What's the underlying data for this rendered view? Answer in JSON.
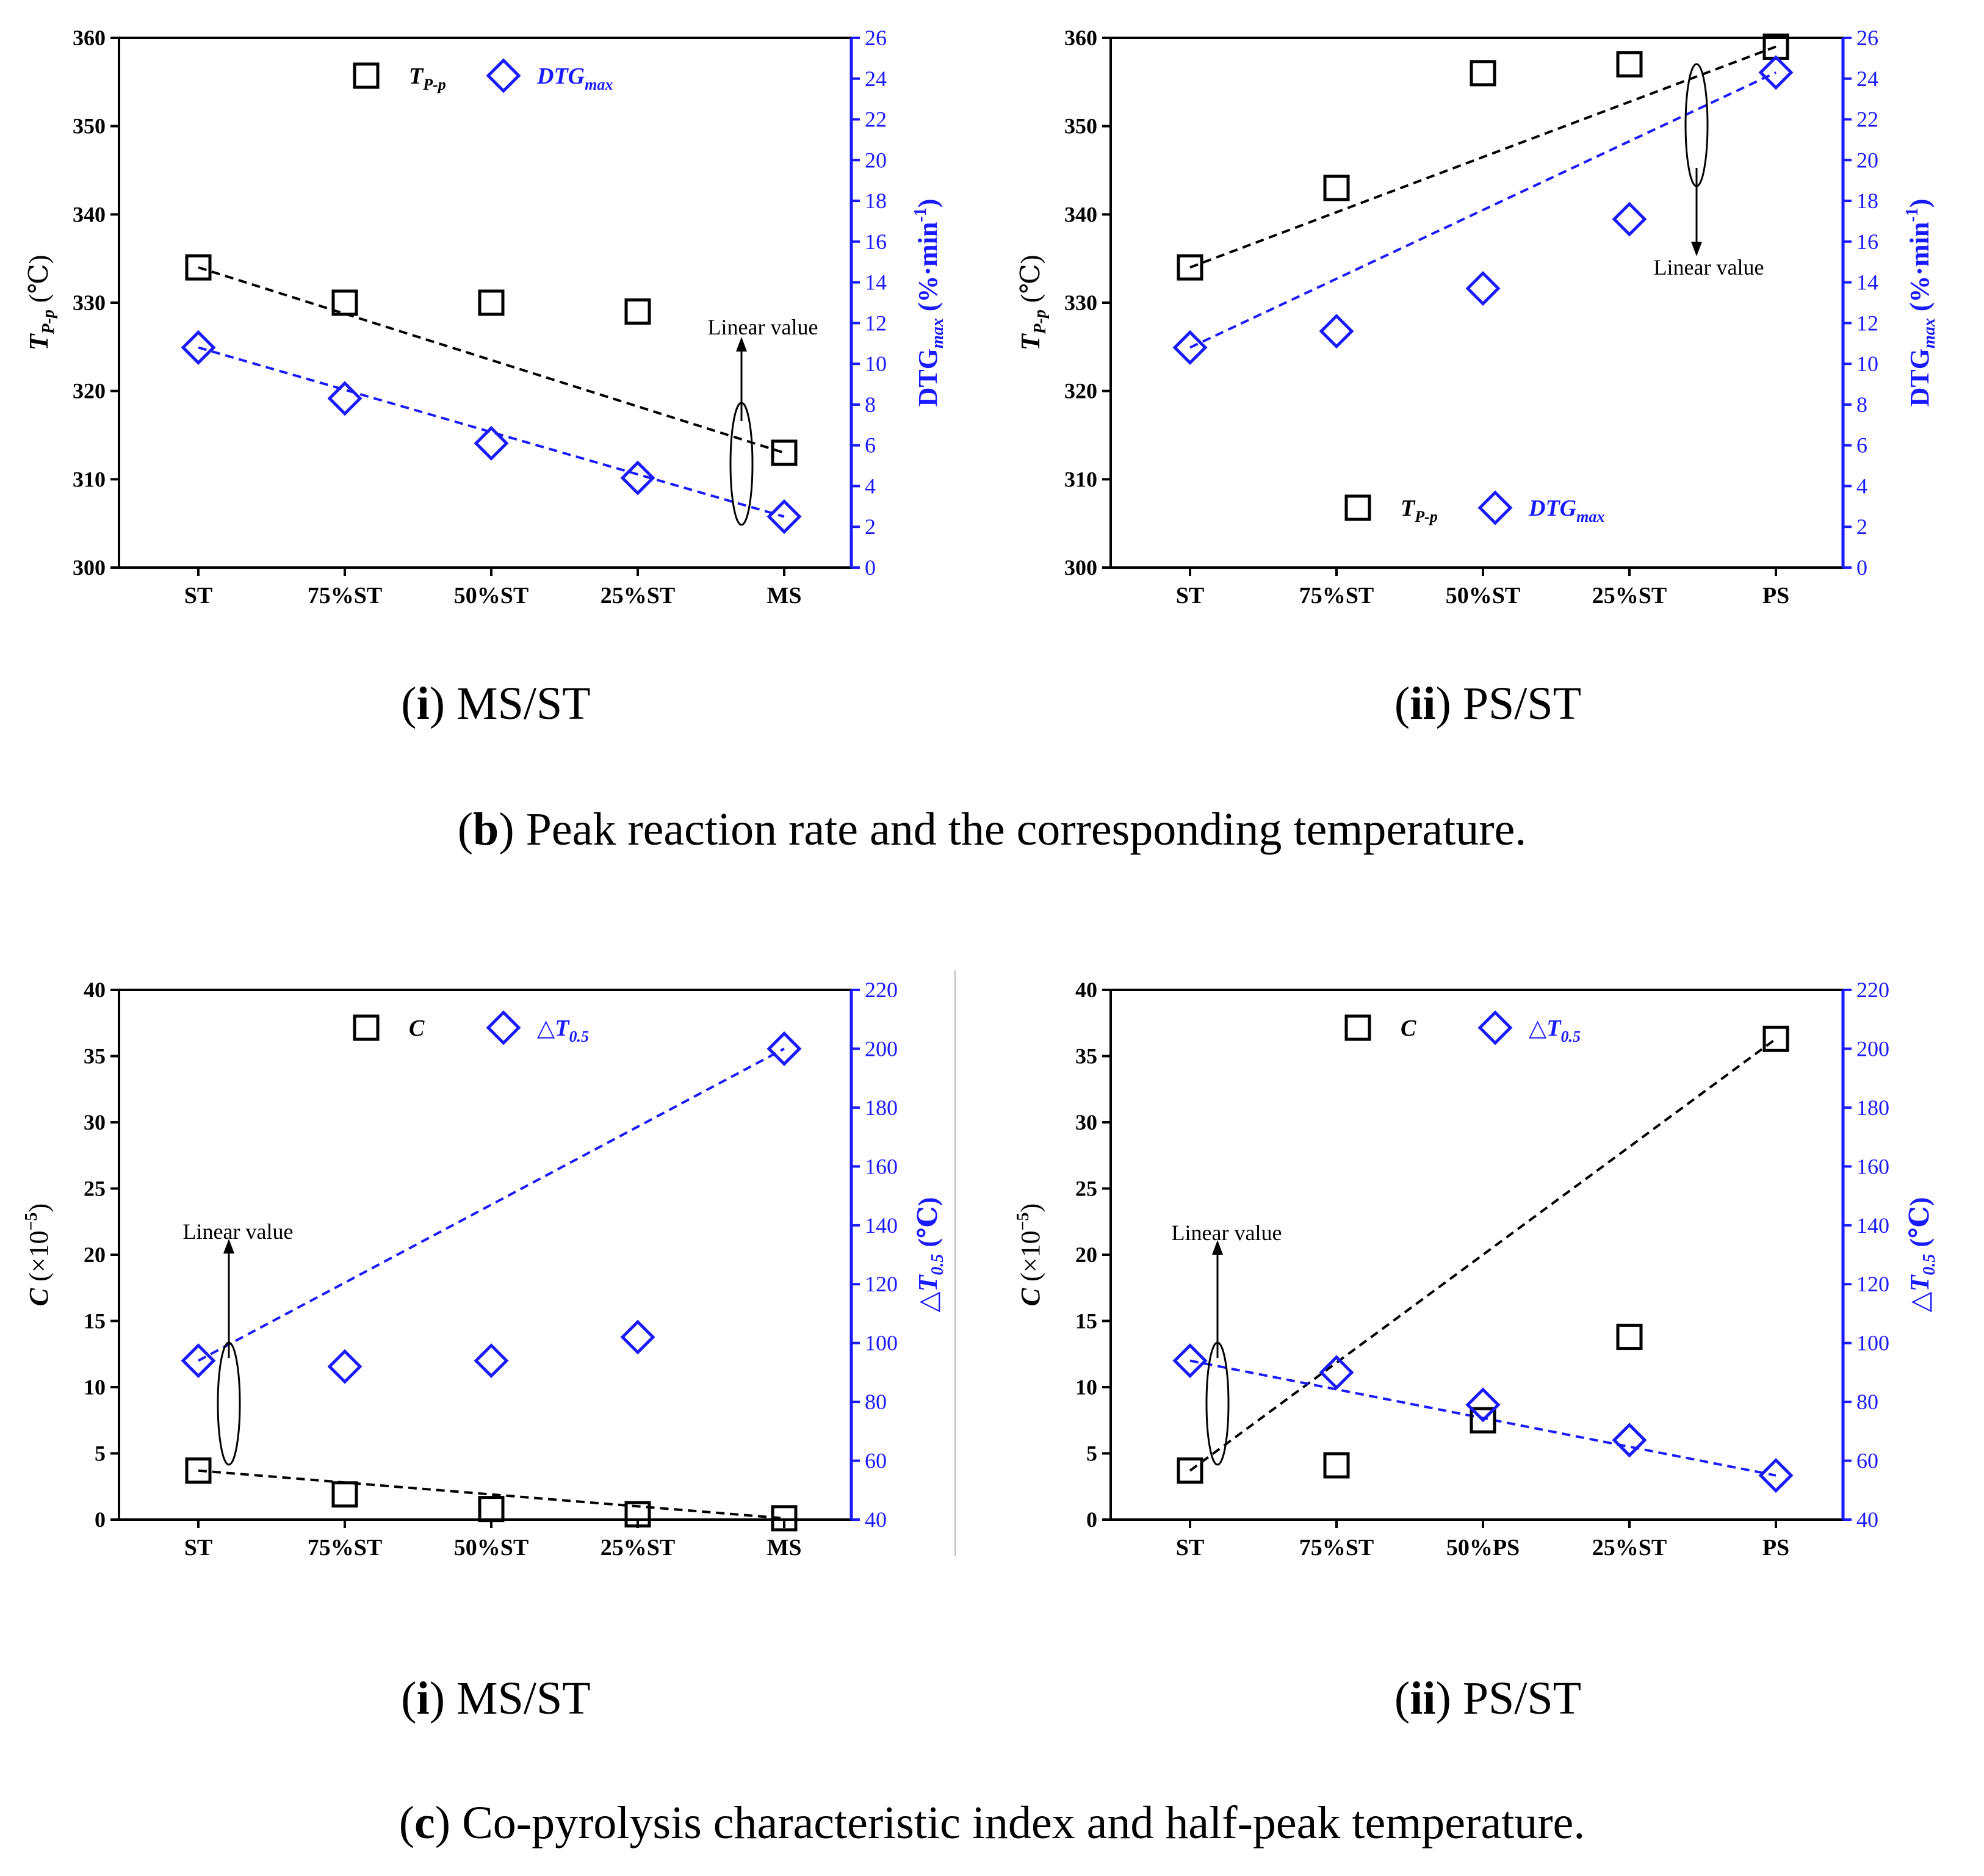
{
  "captions": {
    "b_i_letter": "i",
    "b_i_text": "MS/ST",
    "b_ii_letter": "ii",
    "b_ii_text": "PS/ST",
    "b_group_letter": "b",
    "b_group_text": "Peak reaction rate and the corresponding temperature.",
    "c_i_letter": "i",
    "c_i_text": "MS/ST",
    "c_ii_letter": "ii",
    "c_ii_text": "PS/ST",
    "c_group_letter": "c",
    "c_group_text": "Co-pyrolysis characteristic index and half-peak temperature."
  },
  "colors": {
    "left_series": "#000000",
    "right_series": "#1a1aff"
  },
  "chart_data": [
    {
      "id": "b-i",
      "type": "scatter",
      "categories": [
        "ST",
        "75%ST",
        "50%ST",
        "25%ST",
        "MS"
      ],
      "left_axis": {
        "label_main": "T",
        "label_sub": "P-p",
        "label_unit": " (℃)",
        "ylim": [
          300,
          360
        ],
        "ticks": [
          300,
          310,
          320,
          330,
          340,
          350,
          360
        ]
      },
      "right_axis": {
        "label_main": "DTG",
        "label_sub": "max",
        "label_unit": " (%·min",
        "label_sup": "-1",
        "label_close": ")",
        "ylim": [
          0,
          26
        ],
        "ticks": [
          0,
          2,
          4,
          6,
          8,
          10,
          12,
          14,
          16,
          18,
          20,
          22,
          24,
          26
        ]
      },
      "series": [
        {
          "name": "T",
          "name_sub": "P-p",
          "axis": "left",
          "marker": "square",
          "values": [
            334,
            330,
            330,
            329,
            313
          ]
        },
        {
          "name": "DTG",
          "name_sub": "max",
          "axis": "right",
          "marker": "diamond",
          "values": [
            10.8,
            8.3,
            6.1,
            4.4,
            2.5
          ]
        }
      ],
      "linear_lines": [
        {
          "axis": "left",
          "from": [
            0,
            334
          ],
          "to": [
            4,
            313
          ]
        },
        {
          "axis": "right",
          "from": [
            0,
            10.8
          ],
          "to": [
            4,
            2.5
          ]
        }
      ],
      "annotation": {
        "text": "Linear value",
        "direction": "up"
      },
      "legend_position": "top-center"
    },
    {
      "id": "b-ii",
      "type": "scatter",
      "categories": [
        "ST",
        "75%ST",
        "50%ST",
        "25%ST",
        "PS"
      ],
      "left_axis": {
        "label_main": "T",
        "label_sub": "P-p",
        "label_unit": " (℃)",
        "ylim": [
          300,
          360
        ],
        "ticks": [
          300,
          310,
          320,
          330,
          340,
          350,
          360
        ]
      },
      "right_axis": {
        "label_main": "DTG",
        "label_sub": "max",
        "label_unit": " (%·min",
        "label_sup": "-1",
        "label_close": ")",
        "ylim": [
          0,
          26
        ],
        "ticks": [
          0,
          2,
          4,
          6,
          8,
          10,
          12,
          14,
          16,
          18,
          20,
          22,
          24,
          26
        ]
      },
      "series": [
        {
          "name": "T",
          "name_sub": "P-p",
          "axis": "left",
          "marker": "square",
          "values": [
            334,
            343,
            356,
            357,
            359
          ]
        },
        {
          "name": "DTG",
          "name_sub": "max",
          "axis": "right",
          "marker": "diamond",
          "values": [
            10.8,
            11.6,
            13.7,
            17.1,
            24.3
          ]
        }
      ],
      "linear_lines": [
        {
          "axis": "left",
          "from": [
            0,
            334
          ],
          "to": [
            4,
            359
          ]
        },
        {
          "axis": "right",
          "from": [
            0,
            10.8
          ],
          "to": [
            4,
            24.3
          ]
        }
      ],
      "annotation": {
        "text": "Linear value",
        "direction": "down"
      },
      "legend_position": "bottom-center"
    },
    {
      "id": "c-i",
      "type": "scatter",
      "categories": [
        "ST",
        "75%ST",
        "50%ST",
        "25%ST",
        "MS"
      ],
      "left_axis": {
        "label_main": "C",
        "label_unit": " (×10",
        "label_sup": "−5",
        "label_close": ")",
        "ylim": [
          0,
          40
        ],
        "ticks": [
          0,
          5,
          10,
          15,
          20,
          25,
          30,
          35,
          40
        ]
      },
      "right_axis": {
        "label_main": "△T",
        "label_sub": "0.5",
        "label_unit": " (℃)",
        "ylim": [
          40,
          220
        ],
        "ticks": [
          40,
          60,
          80,
          100,
          120,
          140,
          160,
          180,
          200,
          220
        ]
      },
      "series": [
        {
          "name": "C",
          "axis": "left",
          "marker": "square",
          "values": [
            3.7,
            1.9,
            0.8,
            0.4,
            0.1
          ]
        },
        {
          "name": "△T",
          "name_sub": "0.5",
          "axis": "right",
          "marker": "diamond",
          "values": [
            94,
            92,
            94,
            102,
            200
          ]
        }
      ],
      "linear_lines": [
        {
          "axis": "left",
          "from": [
            0,
            3.7
          ],
          "to": [
            4,
            0.1
          ]
        },
        {
          "axis": "right",
          "from": [
            0,
            94
          ],
          "to": [
            4,
            200
          ]
        }
      ],
      "annotation": {
        "text": "Linear value",
        "direction": "up"
      },
      "legend_position": "top-center"
    },
    {
      "id": "c-ii",
      "type": "scatter",
      "categories": [
        "ST",
        "75%ST",
        "50%PS",
        "25%ST",
        "PS"
      ],
      "left_axis": {
        "label_main": "C",
        "label_unit": " (×10",
        "label_sup": "−5",
        "label_close": ")",
        "ylim": [
          0,
          40
        ],
        "ticks": [
          0,
          5,
          10,
          15,
          20,
          25,
          30,
          35,
          40
        ]
      },
      "right_axis": {
        "label_main": "△T",
        "label_sub": "0.5",
        "label_unit": " (℃)",
        "ylim": [
          40,
          220
        ],
        "ticks": [
          40,
          60,
          80,
          100,
          120,
          140,
          160,
          180,
          200,
          220
        ]
      },
      "series": [
        {
          "name": "C",
          "axis": "left",
          "marker": "square",
          "values": [
            3.7,
            4.1,
            7.5,
            13.8,
            36.3
          ]
        },
        {
          "name": "△T",
          "name_sub": "0.5",
          "axis": "right",
          "marker": "diamond",
          "values": [
            94,
            90,
            79,
            67,
            55
          ]
        }
      ],
      "linear_lines": [
        {
          "axis": "left",
          "from": [
            0,
            3.7
          ],
          "to": [
            4,
            36.3
          ]
        },
        {
          "axis": "right",
          "from": [
            0,
            94
          ],
          "to": [
            4,
            55
          ]
        }
      ],
      "annotation": {
        "text": "Linear value",
        "direction": "up"
      },
      "legend_position": "top-center"
    }
  ]
}
